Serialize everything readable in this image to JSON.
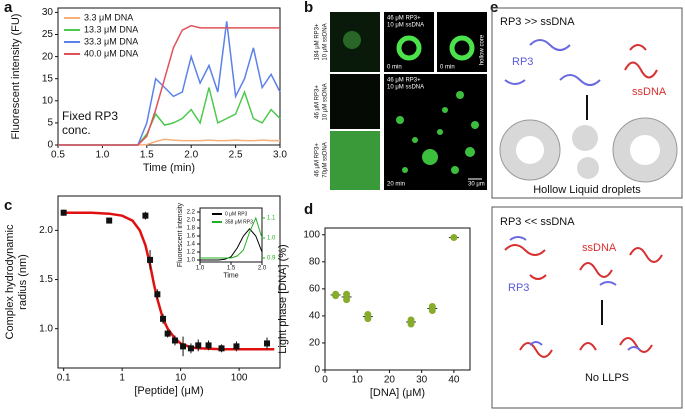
{
  "panel_labels": [
    "a",
    "b",
    "c",
    "d",
    "e"
  ],
  "chart_data": [
    {
      "type": "line",
      "x_label": "Time (min)",
      "y_label": "Fluorescent intensity (FU)",
      "annotation": [
        "Fixed RP3",
        "conc."
      ],
      "legend": "upper left",
      "x": [
        0.5,
        0.6,
        0.7,
        0.8,
        0.9,
        1.0,
        1.1,
        1.2,
        1.3,
        1.4,
        1.5,
        1.6,
        1.7,
        1.8,
        1.9,
        2.0,
        2.1,
        2.2,
        2.3,
        2.4,
        2.5,
        2.6,
        2.7,
        2.8,
        2.9,
        3.0
      ],
      "series": [
        {
          "name": "3.3 μM DNA",
          "color": "#f5b07a",
          "values": [
            0,
            0,
            0,
            0,
            0,
            0,
            0,
            0,
            0,
            0,
            0.1,
            0.8,
            1.3,
            1.1,
            1.0,
            1.0,
            1.0,
            1.1,
            1.0,
            1.0,
            1.1,
            1.0,
            1.0,
            1.1,
            1.0,
            1.0
          ]
        },
        {
          "name": "13.3 μM DNA",
          "color": "#4ec94e",
          "values": [
            0,
            0,
            0,
            0,
            0,
            0,
            0,
            0,
            0,
            0,
            2.5,
            7,
            4.5,
            5,
            6,
            8,
            5,
            13,
            5,
            6,
            7,
            12,
            6,
            5,
            8,
            6
          ]
        },
        {
          "name": "33.3 μM DNA",
          "color": "#5b82e8",
          "values": [
            0,
            0,
            0,
            0,
            0,
            0,
            0,
            0,
            0,
            0,
            5,
            15,
            13,
            11,
            12,
            20,
            14,
            18,
            12,
            28,
            11,
            15,
            22,
            13,
            16,
            12
          ]
        },
        {
          "name": "40.0 μM DNA",
          "color": "#e0525a",
          "values": [
            0,
            0,
            0,
            0,
            0,
            0,
            0,
            0,
            0,
            0,
            2,
            8,
            15,
            22,
            26,
            27,
            26.5,
            26.5,
            26.5,
            26.5,
            26.5,
            26.5,
            26.5,
            26.5,
            26.5,
            26.5
          ]
        }
      ],
      "xlim": [
        0.5,
        3.0
      ],
      "xticks": [
        0.5,
        {
          "value": 1,
          "label": "1.0"
        },
        1.5,
        {
          "value": 2,
          "label": "2.0"
        },
        2.5,
        {
          "value": 3,
          "label": "3.0"
        }
      ],
      "ylim": [
        0,
        31
      ],
      "yticks": [
        0,
        5,
        10,
        15,
        20,
        25,
        30
      ]
    },
    {
      "type": "scatter",
      "x_label": "[Peptide] (μM)",
      "y_label": [
        "Complex hydrodynamic",
        "radius (nm)"
      ],
      "log_x": true,
      "color": "#111111",
      "x": [
        0.1,
        0.6,
        2.5,
        3,
        4,
        5,
        6,
        8,
        11,
        15,
        20,
        30,
        50,
        90,
        300
      ],
      "values": [
        2.18,
        2.1,
        2.15,
        1.7,
        1.35,
        1.1,
        0.95,
        0.88,
        0.82,
        0.8,
        0.83,
        0.83,
        0.8,
        0.82,
        0.85
      ],
      "errors": [
        0.03,
        0.03,
        0.04,
        0.1,
        0.05,
        0.05,
        0.04,
        0.05,
        0.1,
        0.05,
        0.06,
        0.05,
        0.04,
        0.05,
        0.06
      ],
      "fit": {
        "color": "#e01010",
        "x": [
          0.1,
          0.3,
          0.6,
          1,
          1.5,
          2,
          2.5,
          3,
          3.5,
          4,
          5,
          6,
          8,
          10,
          15,
          20,
          50,
          100,
          400
        ],
        "values": [
          2.18,
          2.18,
          2.17,
          2.15,
          2.1,
          2.0,
          1.85,
          1.65,
          1.45,
          1.3,
          1.1,
          1.0,
          0.9,
          0.85,
          0.81,
          0.8,
          0.79,
          0.79,
          0.79
        ]
      },
      "xlim": [
        0.08,
        500
      ],
      "xticks": [
        0.1,
        1,
        10,
        100
      ],
      "ylim": [
        0.6,
        2.35
      ],
      "yticks": [
        {
          "value": 1,
          "label": "1.0"
        },
        1.5,
        {
          "value": 2,
          "label": "2.0"
        }
      ]
    },
    {
      "type": "line",
      "x_label": "Time",
      "y_label": "Fluorescent intensity",
      "legend": "top",
      "x": [
        1.0,
        1.1,
        1.2,
        1.3,
        1.4,
        1.5,
        1.6,
        1.7,
        1.8,
        1.9,
        2.0
      ],
      "series": [
        {
          "name": "0 μM RP3",
          "color": "#000000",
          "values": [
            1.0,
            1.0,
            1.0,
            1.0,
            1.02,
            1.08,
            1.3,
            1.6,
            1.78,
            1.6,
            1.2
          ]
        },
        {
          "name": "358 μM RP3",
          "color": "#22b022",
          "axis": "y2",
          "values": [
            0.9,
            0.9,
            0.9,
            0.9,
            0.9,
            0.9,
            0.91,
            0.94,
            1.03,
            1.1,
            1.0
          ]
        }
      ],
      "xlim": [
        1.0,
        2.0
      ],
      "xticks": [
        {
          "value": 1,
          "label": "1.0"
        },
        1.5,
        {
          "value": 2,
          "label": "2.0"
        }
      ],
      "ylim": [
        0.95,
        2.3
      ],
      "yticks": [
        {
          "value": 1,
          "label": "1.0"
        },
        1.2,
        1.4,
        1.6,
        1.8,
        {
          "value": 2,
          "label": "2.0"
        },
        2.2
      ],
      "y2lim": [
        0.88,
        1.15
      ],
      "y2ticks": [
        0.9,
        {
          "value": 1,
          "label": "1.0"
        },
        1.1
      ]
    },
    {
      "type": "scatter",
      "x_label": "[DNA] (μM)",
      "y_label": "Light phase [DNA] (%)",
      "color": "#86ac2c",
      "x": [
        3.3,
        3.3,
        6.7,
        6.7,
        13.3,
        13.3,
        26.7,
        26.7,
        33.3,
        33.3,
        40
      ],
      "values": [
        55,
        56,
        52,
        56,
        38,
        41,
        34,
        37,
        44,
        47,
        98
      ],
      "means": {
        "color": "#333333",
        "x": [
          3.3,
          6.7,
          13.3,
          26.7,
          33.3,
          40
        ],
        "values": [
          55.5,
          54,
          39.5,
          35.5,
          45.5,
          98
        ]
      },
      "xlim": [
        0,
        45
      ],
      "xticks": [
        0,
        10,
        20,
        30,
        40
      ],
      "ylim": [
        0,
        105
      ],
      "yticks": [
        0,
        20,
        40,
        60,
        80,
        100
      ]
    }
  ],
  "microscopy": {
    "row_labels": [
      [
        "184 μM RP3+",
        "10 μM ssDNA"
      ],
      [
        "46 μM RP3+",
        "10 μM ssDNA"
      ],
      [
        "46 μM RP3+",
        "70μM ssDNA"
      ]
    ],
    "captions": [
      "46 μM RP3+",
      "10 μM ssDNA",
      "0 min",
      "0 min",
      "hollow core",
      "46 μM RP3+",
      "10 μM ssDNA",
      "20 min"
    ],
    "scale_bar": "30 μm"
  },
  "diagram": {
    "top": {
      "title": "RP3 >> ssDNA",
      "peptide": "RP3",
      "dna": "ssDNA",
      "result": "Hollow Liquid droplets"
    },
    "bottom": {
      "title": "RP3 << ssDNA",
      "dna": "ssDNA",
      "peptide": "RP3",
      "result": "No LLPS"
    }
  }
}
